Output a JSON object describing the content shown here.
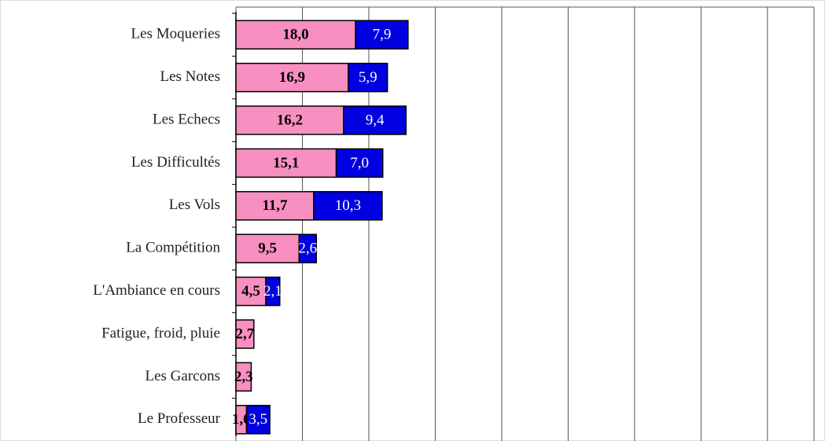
{
  "chart_data": {
    "type": "stacked-barh",
    "categories": [
      "Les Moqueries",
      "Les Notes",
      "Les Echecs",
      "Les Difficultés",
      "Les Vols",
      "La Compétition",
      "L'Ambiance en cours",
      "Fatigue, froid, pluie",
      "Les Garcons",
      "Le Professeur"
    ],
    "series": [
      {
        "color": "#f78fc0",
        "values": [
          18.0,
          16.9,
          16.2,
          15.1,
          11.7,
          9.5,
          4.5,
          2.7,
          2.3,
          1.6
        ],
        "value_labels": [
          "18,0",
          "16,9",
          "16,2",
          "15,1",
          "11,7",
          "9,5",
          "4,5",
          "2,7",
          "2,3",
          "1,6"
        ]
      },
      {
        "color": "#0000e0",
        "values": [
          7.9,
          5.9,
          9.4,
          7.0,
          10.3,
          2.6,
          2.1,
          null,
          null,
          3.5
        ],
        "value_labels": [
          "7,9",
          "5,9",
          "9,4",
          "7,0",
          "10,3",
          "2,6",
          "2,1",
          null,
          null,
          "3,5"
        ]
      }
    ],
    "xlim": [
      0,
      87
    ],
    "xticks": [
      0,
      10,
      20,
      30,
      40,
      50,
      60,
      70,
      80
    ],
    "grid": true
  }
}
